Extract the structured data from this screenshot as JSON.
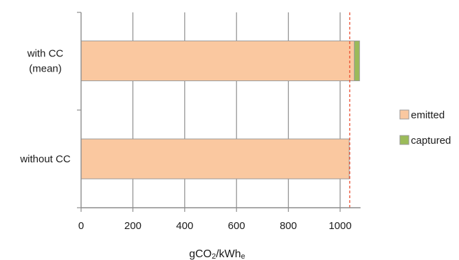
{
  "chart_data": {
    "type": "bar",
    "orientation": "horizontal",
    "stacked": true,
    "categories": [
      {
        "lines": [
          "with CC",
          "(mean)"
        ]
      },
      {
        "lines": [
          "without CC"
        ]
      }
    ],
    "series": [
      {
        "name": "emitted",
        "color": "#fac8a0",
        "values": [
          1055,
          1035
        ]
      },
      {
        "name": "captured",
        "color": "#9bbb59",
        "values": [
          20,
          0
        ]
      }
    ],
    "xlabel": {
      "main": "gCO",
      "sub1": "2",
      "mid": "/kWh",
      "sub2": "e"
    },
    "xlim": [
      0,
      1100
    ],
    "xticks": [
      0,
      200,
      400,
      600,
      800,
      1000
    ],
    "grid": true,
    "reference_line": {
      "x": 1037,
      "color": "#e8492c",
      "style": "dashed"
    },
    "legend_position": "right"
  }
}
